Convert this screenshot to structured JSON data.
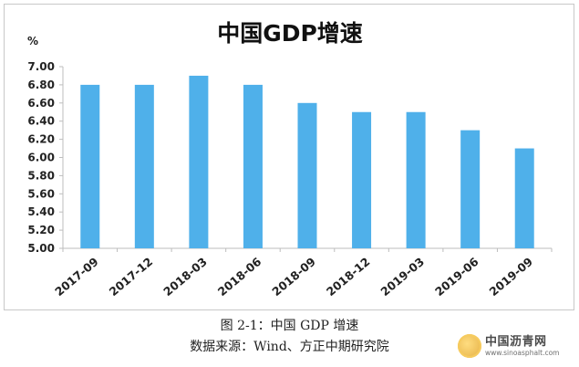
{
  "chart_data": {
    "type": "bar",
    "title": "中国GDP增速",
    "unit_label": "%",
    "categories": [
      "2017-09",
      "2017-12",
      "2018-03",
      "2018-06",
      "2018-09",
      "2018-12",
      "2019-03",
      "2019-06",
      "2019-09"
    ],
    "values": [
      6.8,
      6.8,
      6.9,
      6.8,
      6.6,
      6.5,
      6.5,
      6.3,
      6.1
    ],
    "yticks": [
      "5.00",
      "5.20",
      "5.40",
      "5.60",
      "5.80",
      "6.00",
      "6.20",
      "6.40",
      "6.60",
      "6.80",
      "7.00"
    ],
    "ylim": [
      5.0,
      7.0
    ],
    "grid": false,
    "bar_color": "#4fb0ea"
  },
  "captions": {
    "line1": "图 2-1：中国 GDP 增速",
    "line2": "数据来源：Wind、方正中期研究院"
  },
  "watermark": {
    "name": "中国沥青网",
    "url": "www.sinoasphalt.com"
  }
}
